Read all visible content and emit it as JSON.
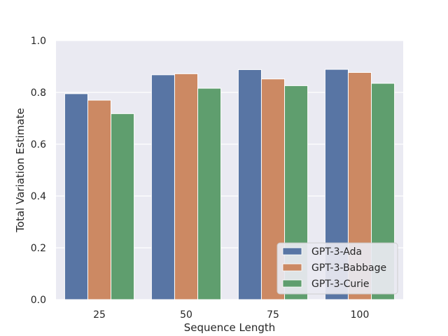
{
  "chart_data": {
    "type": "bar",
    "title": "",
    "xlabel": "Sequence Length",
    "ylabel": "Total Variation Estimate",
    "categories": [
      "25",
      "50",
      "75",
      "100"
    ],
    "ylim": [
      0,
      1.0
    ],
    "yticks": [
      "0.0",
      "0.2",
      "0.4",
      "0.6",
      "0.8",
      "1.0"
    ],
    "grid": true,
    "legend_position": "bottom-right",
    "series": [
      {
        "name": "GPT-3-Ada",
        "color": "#5875a4",
        "values": [
          0.795,
          0.868,
          0.888,
          0.889
        ]
      },
      {
        "name": "GPT-3-Babbage",
        "color": "#cc8963",
        "values": [
          0.77,
          0.872,
          0.852,
          0.877
        ]
      },
      {
        "name": "GPT-3-Curie",
        "color": "#5f9e6e",
        "values": [
          0.718,
          0.816,
          0.826,
          0.835
        ]
      }
    ]
  }
}
